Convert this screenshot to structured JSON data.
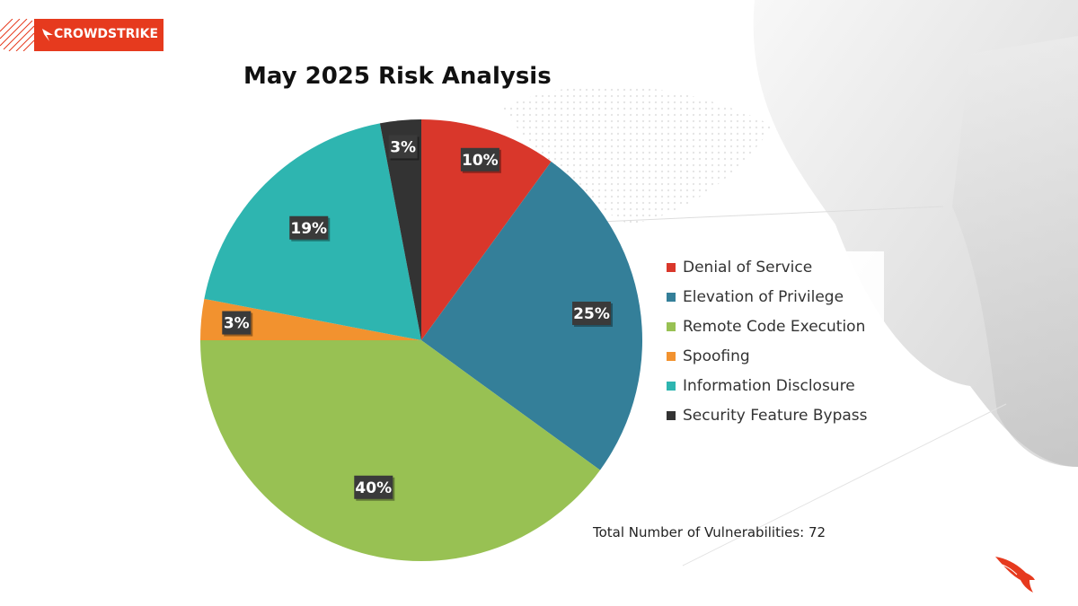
{
  "brand": {
    "name": "CROWDSTRIKE",
    "color": "#e63a1e"
  },
  "chart_data": {
    "type": "pie",
    "title": "May 2025 Risk Analysis",
    "legend_position": "right",
    "slices": [
      {
        "label": "Denial of Service",
        "value": 10,
        "display": "10%",
        "color": "#d9372b"
      },
      {
        "label": "Elevation of Privilege",
        "value": 25,
        "display": "25%",
        "color": "#347f99"
      },
      {
        "label": "Remote Code Execution",
        "value": 40,
        "display": "40%",
        "color": "#98c153"
      },
      {
        "label": "Spoofing",
        "value": 3,
        "display": "3%",
        "color": "#f2922f"
      },
      {
        "label": "Information Disclosure",
        "value": 19,
        "display": "19%",
        "color": "#2eb5b0"
      },
      {
        "label": "Security Feature Bypass",
        "value": 3,
        "display": "3%",
        "color": "#333333"
      }
    ]
  },
  "footer": {
    "total_text": "Total Number of Vulnerabilities: 72"
  },
  "icons": {
    "falcon": "crowdstrike-falcon-icon",
    "hatch": "diagonal-hatch-icon"
  }
}
